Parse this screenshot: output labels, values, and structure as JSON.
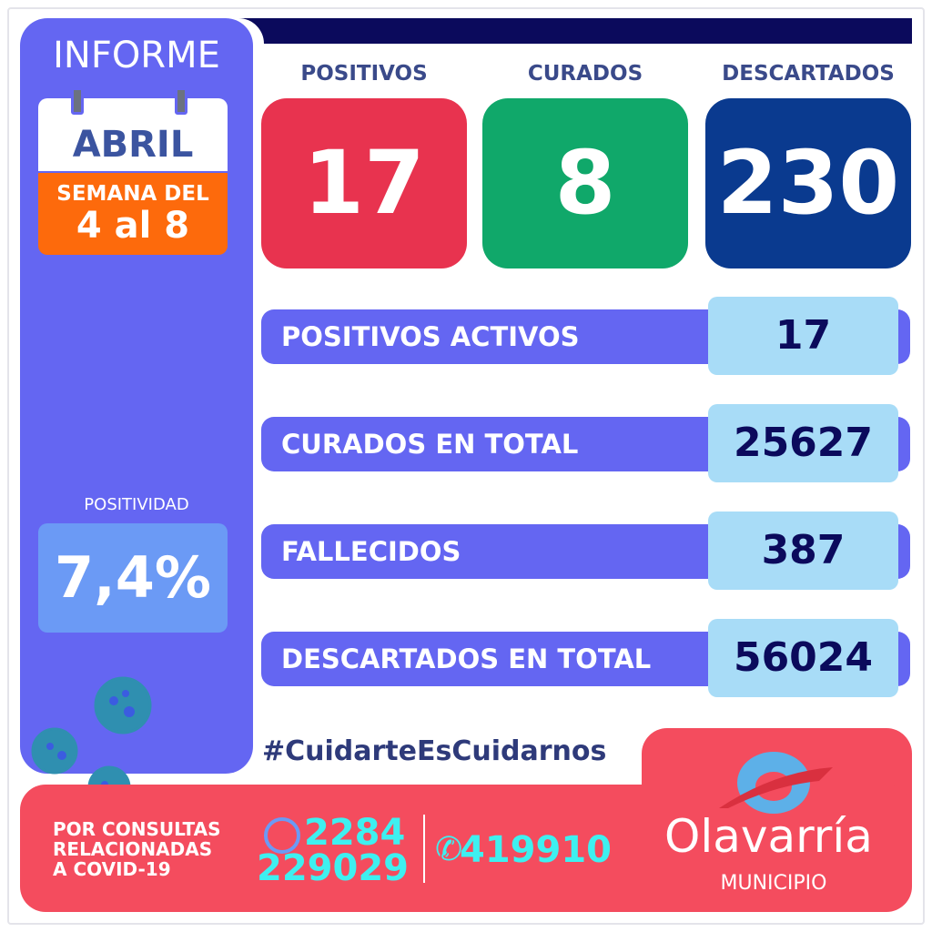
{
  "header": {
    "informe": "INFORME",
    "month": "ABRIL",
    "week_label": "SEMANA DEL",
    "week_range": "4 al 8"
  },
  "positividad": {
    "label": "POSITIVIDAD",
    "value": "7,4%"
  },
  "cards": [
    {
      "label": "POSITIVOS",
      "value": "17",
      "color": "#e8334f"
    },
    {
      "label": "CURADOS",
      "value": "8",
      "color": "#10a86a"
    },
    {
      "label": "DESCARTADOS",
      "value": "230",
      "color": "#0a3a8f"
    }
  ],
  "stats": [
    {
      "label": "POSITIVOS ACTIVOS",
      "value": "17"
    },
    {
      "label": "CURADOS EN TOTAL",
      "value": "25627"
    },
    {
      "label": "FALLECIDOS",
      "value": "387"
    },
    {
      "label": "DESCARTADOS EN TOTAL",
      "value": "56024"
    }
  ],
  "hashtag": "#CuidarteEsCuidarnos",
  "footer": {
    "consult_lines": [
      "POR CONSULTAS",
      "RELACIONADAS",
      "A COVID-19"
    ],
    "whatsapp_line1": "2284",
    "whatsapp_line2": "229029",
    "phone": "419910",
    "logo": "Olavarría",
    "logo_sub": "MUNICIPIO"
  }
}
